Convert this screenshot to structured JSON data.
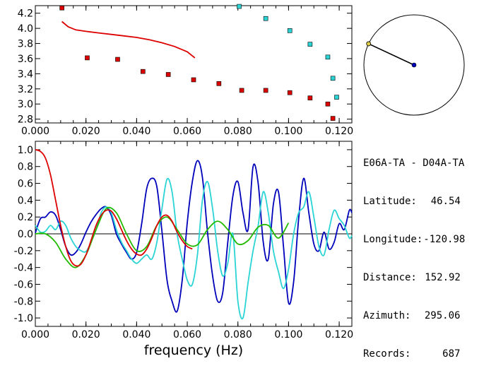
{
  "info": {
    "pair": "E06A-TA - D04A-TA",
    "latitude_label": "Latitude:",
    "latitude": "46.54",
    "longitude_label": "Longitude:",
    "longitude": "-120.98",
    "distance_label": "Distance:",
    "distance": "152.92",
    "azimuth_label": "Azimuth:",
    "azimuth": "295.06",
    "records_label": "Records:",
    "records": "687"
  },
  "colors": {
    "red": "#dd0000",
    "cyan": "#2ad4d4",
    "blue": "#0000bb",
    "green": "#22bb00",
    "axis": "#000000"
  },
  "chart_data": [
    {
      "type": "scatter",
      "title": "",
      "xlabel": "",
      "ylabel": "",
      "xlim": [
        0.0,
        0.125
      ],
      "ylim": [
        2.75,
        4.3
      ],
      "x_ticks": [
        "0.000",
        "0.020",
        "0.040",
        "0.060",
        "0.080",
        "0.100",
        "0.120"
      ],
      "y_ticks": [
        "2.8",
        "3.0",
        "3.2",
        "3.4",
        "3.6",
        "3.8",
        "4.0",
        "4.2"
      ],
      "grid": false,
      "series": [
        {
          "kind": "points",
          "color": "#dd0000",
          "points": [
            [
              0.0105,
              4.27
            ],
            [
              0.0205,
              3.61
            ],
            [
              0.0325,
              3.59
            ],
            [
              0.0425,
              3.43
            ],
            [
              0.0525,
              3.39
            ],
            [
              0.0625,
              3.32
            ],
            [
              0.0725,
              3.27
            ],
            [
              0.0815,
              3.18
            ],
            [
              0.091,
              3.18
            ],
            [
              0.1005,
              3.15
            ],
            [
              0.1085,
              3.08
            ],
            [
              0.1155,
              3.0
            ],
            [
              0.1175,
              2.81
            ]
          ]
        },
        {
          "kind": "points",
          "color": "#2ad4d4",
          "points": [
            [
              0.0805,
              4.29
            ],
            [
              0.091,
              4.13
            ],
            [
              0.1005,
              3.97
            ],
            [
              0.1085,
              3.79
            ],
            [
              0.1155,
              3.62
            ],
            [
              0.1175,
              3.34
            ],
            [
              0.119,
              3.09
            ]
          ]
        },
        {
          "kind": "line",
          "color": "#dd0000",
          "points": [
            [
              0.0105,
              4.09
            ],
            [
              0.013,
              4.02
            ],
            [
              0.016,
              3.98
            ],
            [
              0.02,
              3.96
            ],
            [
              0.025,
              3.94
            ],
            [
              0.03,
              3.92
            ],
            [
              0.035,
              3.9
            ],
            [
              0.04,
              3.88
            ],
            [
              0.045,
              3.85
            ],
            [
              0.05,
              3.81
            ],
            [
              0.055,
              3.76
            ],
            [
              0.06,
              3.69
            ],
            [
              0.063,
              3.61
            ]
          ]
        }
      ]
    },
    {
      "type": "line",
      "title": "",
      "xlabel": "frequency (Hz)",
      "ylabel": "",
      "xlim": [
        0.0,
        0.125
      ],
      "ylim": [
        -1.1,
        1.1
      ],
      "x_ticks": [
        "0.000",
        "0.020",
        "0.040",
        "0.060",
        "0.080",
        "0.100",
        "0.120"
      ],
      "y_ticks": [
        "-1.0",
        "-0.8",
        "-0.6",
        "-0.4",
        "-0.2",
        "0.0",
        "0.2",
        "0.4",
        "0.6",
        "0.8",
        "1.0"
      ],
      "grid": false,
      "zero_line": true,
      "series": [
        {
          "color": "#0000bb",
          "x": [
            0.0,
            0.002,
            0.004,
            0.006,
            0.008,
            0.01,
            0.012,
            0.014,
            0.016,
            0.018,
            0.02,
            0.022,
            0.024,
            0.026,
            0.028,
            0.03,
            0.032,
            0.034,
            0.036,
            0.038,
            0.04,
            0.042,
            0.044,
            0.046,
            0.048,
            0.05,
            0.052,
            0.054,
            0.056,
            0.058,
            0.06,
            0.062,
            0.064,
            0.066,
            0.068,
            0.07,
            0.072,
            0.074,
            0.076,
            0.078,
            0.08,
            0.082,
            0.084,
            0.086,
            0.088,
            0.09,
            0.092,
            0.094,
            0.096,
            0.098,
            0.1,
            0.102,
            0.104,
            0.106,
            0.108,
            0.11,
            0.112,
            0.114,
            0.116,
            0.118,
            0.12,
            0.122,
            0.124,
            0.125
          ],
          "y": [
            0.01,
            0.18,
            0.2,
            0.26,
            0.22,
            0.05,
            -0.15,
            -0.25,
            -0.22,
            -0.12,
            0.02,
            0.14,
            0.23,
            0.3,
            0.32,
            0.22,
            0.0,
            -0.12,
            -0.22,
            -0.3,
            -0.22,
            0.12,
            0.54,
            0.66,
            0.56,
            0.03,
            -0.55,
            -0.8,
            -0.92,
            -0.55,
            0.13,
            0.62,
            0.87,
            0.67,
            0.02,
            -0.5,
            -0.8,
            -0.7,
            -0.1,
            0.45,
            0.62,
            0.25,
            0.05,
            0.8,
            0.6,
            -0.1,
            -0.3,
            0.35,
            0.5,
            -0.15,
            -0.82,
            -0.57,
            0.18,
            0.66,
            0.25,
            -0.12,
            -0.2,
            0.02,
            -0.18,
            -0.1,
            0.12,
            0.05,
            0.28,
            0.25
          ]
        },
        {
          "color": "#2ad4d4",
          "x": [
            0.0,
            0.002,
            0.004,
            0.006,
            0.008,
            0.01,
            0.012,
            0.014,
            0.016,
            0.018,
            0.02,
            0.022,
            0.024,
            0.026,
            0.028,
            0.03,
            0.032,
            0.034,
            0.036,
            0.038,
            0.04,
            0.042,
            0.044,
            0.046,
            0.048,
            0.05,
            0.052,
            0.054,
            0.056,
            0.058,
            0.06,
            0.062,
            0.064,
            0.066,
            0.068,
            0.07,
            0.072,
            0.074,
            0.076,
            0.078,
            0.08,
            0.082,
            0.084,
            0.086,
            0.088,
            0.09,
            0.092,
            0.094,
            0.096,
            0.098,
            0.1,
            0.102,
            0.104,
            0.106,
            0.108,
            0.11,
            0.112,
            0.114,
            0.116,
            0.118,
            0.12,
            0.122,
            0.124,
            0.125
          ],
          "y": [
            0.1,
            0.02,
            0.03,
            0.1,
            0.05,
            0.15,
            0.1,
            -0.05,
            -0.15,
            -0.2,
            -0.21,
            -0.1,
            0.05,
            0.25,
            0.32,
            0.25,
            0.05,
            -0.1,
            -0.2,
            -0.3,
            -0.35,
            -0.3,
            -0.25,
            -0.3,
            -0.1,
            0.3,
            0.65,
            0.5,
            0.0,
            -0.3,
            -0.55,
            -0.6,
            -0.25,
            0.4,
            0.62,
            0.3,
            -0.2,
            -0.5,
            -0.35,
            0.0,
            -0.8,
            -1.0,
            -0.58,
            -0.2,
            0.1,
            0.5,
            0.25,
            -0.2,
            -0.45,
            -0.65,
            -0.42,
            0.0,
            0.25,
            0.32,
            0.5,
            0.2,
            -0.15,
            -0.25,
            0.05,
            0.28,
            0.18,
            0.1,
            -0.05,
            -0.02
          ]
        },
        {
          "color": "#22bb00",
          "x": [
            0.0,
            0.004,
            0.008,
            0.012,
            0.016,
            0.02,
            0.024,
            0.028,
            0.032,
            0.036,
            0.04,
            0.044,
            0.048,
            0.052,
            0.056,
            0.06,
            0.064,
            0.068,
            0.072,
            0.076,
            0.08,
            0.084,
            0.088,
            0.092,
            0.096,
            0.1
          ],
          "y": [
            0.0,
            0.0,
            -0.1,
            -0.3,
            -0.4,
            -0.25,
            0.05,
            0.3,
            0.25,
            0.0,
            -0.2,
            -0.15,
            0.1,
            0.2,
            0.05,
            -0.12,
            -0.13,
            0.05,
            0.15,
            0.05,
            -0.12,
            -0.08,
            0.08,
            0.1,
            -0.05,
            0.13
          ]
        },
        {
          "color": "#dd0000",
          "x": [
            0.0,
            0.002,
            0.004,
            0.006,
            0.008,
            0.01,
            0.012,
            0.014,
            0.016,
            0.018,
            0.02,
            0.022,
            0.024,
            0.026,
            0.028,
            0.03,
            0.032,
            0.034,
            0.036,
            0.038,
            0.04,
            0.042,
            0.044,
            0.046,
            0.048,
            0.05,
            0.052,
            0.054,
            0.056,
            0.058,
            0.06,
            0.062
          ],
          "y": [
            1.0,
            0.98,
            0.9,
            0.7,
            0.4,
            0.1,
            -0.15,
            -0.32,
            -0.38,
            -0.36,
            -0.25,
            -0.08,
            0.1,
            0.22,
            0.28,
            0.27,
            0.18,
            0.05,
            -0.08,
            -0.18,
            -0.24,
            -0.25,
            -0.18,
            -0.05,
            0.1,
            0.2,
            0.22,
            0.15,
            0.02,
            -0.08,
            -0.15,
            -0.18
          ]
        }
      ]
    },
    {
      "type": "polar",
      "title": "",
      "azimuth_deg": 295.06,
      "marker_colors": [
        "#ddcc44",
        "#0000bb"
      ]
    }
  ]
}
